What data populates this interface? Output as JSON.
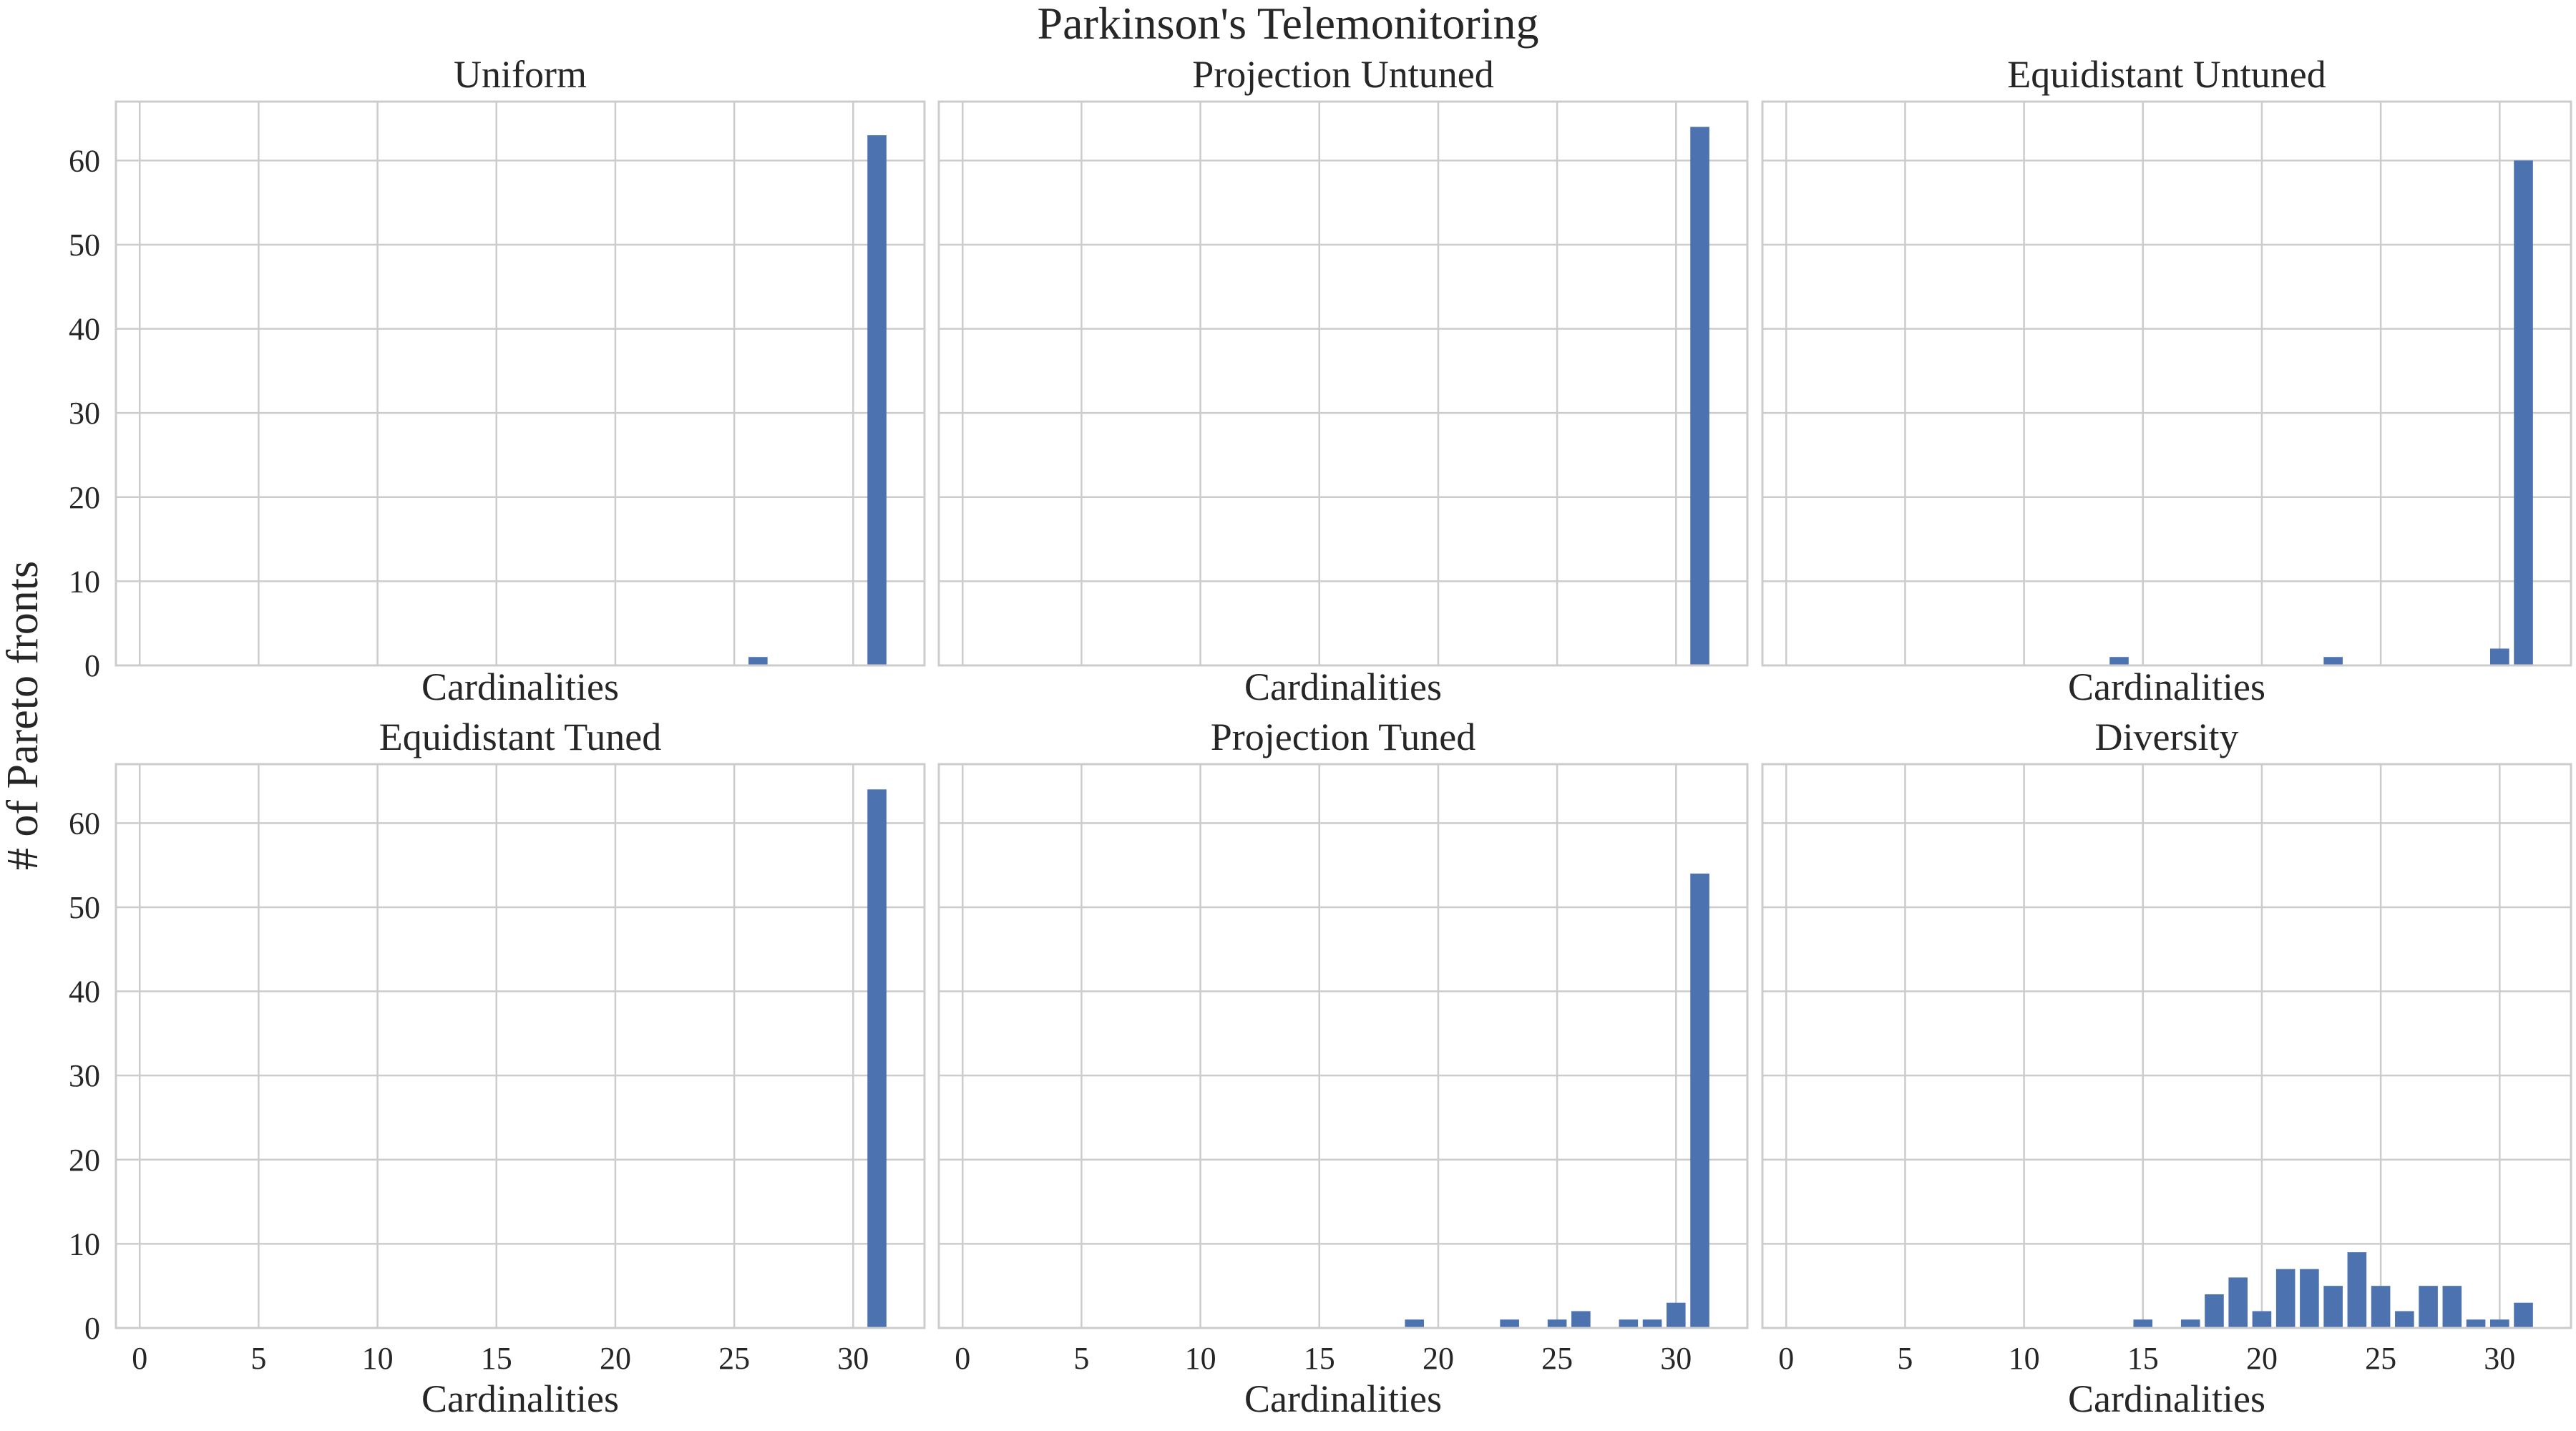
{
  "figure": {
    "title": "Parkinson's Telemonitoring",
    "ylabel": "# of Pareto fronts",
    "bar_color": "#4c72b0",
    "grid_color": "#cccccc",
    "frame_color": "#cccccc"
  },
  "chart_data": [
    {
      "type": "bar",
      "title": "Uniform",
      "xlabel": "Cardinalities",
      "ylabel": "# of Pareto fronts",
      "xlim": [
        -1,
        33
      ],
      "ylim": [
        0,
        67
      ],
      "xticks": [
        0,
        5,
        10,
        15,
        20,
        25,
        30
      ],
      "yticks": [
        0,
        10,
        20,
        30,
        40,
        50,
        60
      ],
      "show_xticklabels": false,
      "show_yticklabels": true,
      "grid": true,
      "x": [
        26,
        31
      ],
      "values": [
        1,
        63
      ]
    },
    {
      "type": "bar",
      "title": "Projection Untuned",
      "xlabel": "Cardinalities",
      "ylabel": "# of Pareto fronts",
      "xlim": [
        -1,
        33
      ],
      "ylim": [
        0,
        67
      ],
      "xticks": [
        0,
        5,
        10,
        15,
        20,
        25,
        30
      ],
      "yticks": [
        0,
        10,
        20,
        30,
        40,
        50,
        60
      ],
      "show_xticklabels": false,
      "show_yticklabels": false,
      "grid": true,
      "x": [
        31
      ],
      "values": [
        64
      ]
    },
    {
      "type": "bar",
      "title": "Equidistant Untuned",
      "xlabel": "Cardinalities",
      "ylabel": "# of Pareto fronts",
      "xlim": [
        -1,
        33
      ],
      "ylim": [
        0,
        67
      ],
      "xticks": [
        0,
        5,
        10,
        15,
        20,
        25,
        30
      ],
      "yticks": [
        0,
        10,
        20,
        30,
        40,
        50,
        60
      ],
      "show_xticklabels": false,
      "show_yticklabels": false,
      "grid": true,
      "x": [
        14,
        23,
        30,
        31
      ],
      "values": [
        1,
        1,
        2,
        60
      ]
    },
    {
      "type": "bar",
      "title": "Equidistant Tuned",
      "xlabel": "Cardinalities",
      "ylabel": "# of Pareto fronts",
      "xlim": [
        -1,
        33
      ],
      "ylim": [
        0,
        67
      ],
      "xticks": [
        0,
        5,
        10,
        15,
        20,
        25,
        30
      ],
      "yticks": [
        0,
        10,
        20,
        30,
        40,
        50,
        60
      ],
      "show_xticklabels": true,
      "show_yticklabels": true,
      "grid": true,
      "x": [
        31
      ],
      "values": [
        64
      ]
    },
    {
      "type": "bar",
      "title": "Projection Tuned",
      "xlabel": "Cardinalities",
      "ylabel": "# of Pareto fronts",
      "xlim": [
        -1,
        33
      ],
      "ylim": [
        0,
        67
      ],
      "xticks": [
        0,
        5,
        10,
        15,
        20,
        25,
        30
      ],
      "yticks": [
        0,
        10,
        20,
        30,
        40,
        50,
        60
      ],
      "show_xticklabels": true,
      "show_yticklabels": false,
      "grid": true,
      "x": [
        19,
        23,
        25,
        26,
        28,
        29,
        30,
        31
      ],
      "values": [
        1,
        1,
        1,
        2,
        1,
        1,
        3,
        54
      ]
    },
    {
      "type": "bar",
      "title": "Diversity",
      "xlabel": "Cardinalities",
      "ylabel": "# of Pareto fronts",
      "xlim": [
        -1,
        33
      ],
      "ylim": [
        0,
        67
      ],
      "xticks": [
        0,
        5,
        10,
        15,
        20,
        25,
        30
      ],
      "yticks": [
        0,
        10,
        20,
        30,
        40,
        50,
        60
      ],
      "show_xticklabels": true,
      "show_yticklabels": false,
      "grid": true,
      "x": [
        15,
        17,
        18,
        19,
        20,
        21,
        22,
        23,
        24,
        25,
        26,
        27,
        28,
        29,
        30,
        31
      ],
      "values": [
        1,
        1,
        4,
        6,
        2,
        7,
        7,
        5,
        9,
        5,
        2,
        5,
        5,
        1,
        1,
        3
      ]
    }
  ]
}
